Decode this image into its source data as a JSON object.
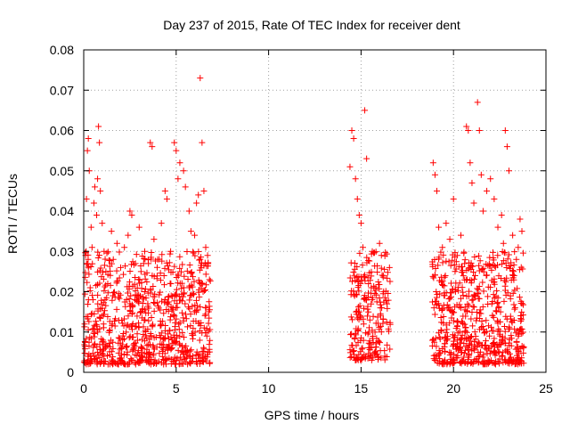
{
  "chart_data": {
    "type": "scatter",
    "title": "Day 237 of 2015, Rate Of TEC Index for receiver dent",
    "xlabel": "GPS time / hours",
    "ylabel": "ROTI / TECUs",
    "xlim": [
      0,
      25
    ],
    "ylim": [
      0,
      0.08
    ],
    "x_ticks": [
      0,
      5,
      10,
      15,
      20,
      25
    ],
    "y_ticks": [
      0,
      0.01,
      0.02,
      0.03,
      0.04,
      0.05,
      0.06,
      0.07,
      0.08
    ],
    "x_tick_labels": [
      "0",
      "5",
      "10",
      "15",
      "20",
      "25"
    ],
    "y_tick_labels": [
      "0",
      "0.01",
      "0.02",
      "0.03",
      "0.04",
      "0.05",
      "0.06",
      "0.07",
      "0.08"
    ],
    "grid": true,
    "legend": "none",
    "marker": "+",
    "color": "#ff0000",
    "series": [
      {
        "points": [
          [
            0.05,
            0.012
          ],
          [
            0.1,
            0.029
          ],
          [
            0.15,
            0.043
          ],
          [
            0.2,
            0.055
          ],
          [
            0.25,
            0.058
          ],
          [
            0.3,
            0.05
          ],
          [
            0.35,
            0.021
          ],
          [
            0.4,
            0.036
          ],
          [
            0.45,
            0.031
          ],
          [
            0.5,
            0.018
          ],
          [
            0.55,
            0.042
          ],
          [
            0.6,
            0.046
          ],
          [
            0.7,
            0.039
          ],
          [
            0.75,
            0.048
          ],
          [
            0.8,
            0.061
          ],
          [
            0.85,
            0.057
          ],
          [
            0.9,
            0.045
          ],
          [
            1.0,
            0.037
          ],
          [
            1.1,
            0.03
          ],
          [
            1.2,
            0.025
          ],
          [
            1.3,
            0.022
          ],
          [
            1.5,
            0.035
          ],
          [
            1.6,
            0.028
          ],
          [
            1.8,
            0.032
          ],
          [
            2.0,
            0.026
          ],
          [
            2.2,
            0.031
          ],
          [
            2.4,
            0.034
          ],
          [
            2.5,
            0.04
          ],
          [
            2.6,
            0.039
          ],
          [
            2.8,
            0.027
          ],
          [
            3.0,
            0.036
          ],
          [
            3.1,
            0.025
          ],
          [
            3.3,
            0.03
          ],
          [
            3.5,
            0.027
          ],
          [
            3.6,
            0.057
          ],
          [
            3.7,
            0.056
          ],
          [
            3.8,
            0.033
          ],
          [
            4.0,
            0.028
          ],
          [
            4.2,
            0.037
          ],
          [
            4.4,
            0.045
          ],
          [
            4.5,
            0.043
          ],
          [
            4.7,
            0.03
          ],
          [
            4.9,
            0.057
          ],
          [
            5.0,
            0.055
          ],
          [
            5.1,
            0.048
          ],
          [
            5.2,
            0.052
          ],
          [
            5.4,
            0.05
          ],
          [
            5.5,
            0.046
          ],
          [
            5.7,
            0.04
          ],
          [
            5.8,
            0.035
          ],
          [
            6.0,
            0.034
          ],
          [
            6.1,
            0.042
          ],
          [
            6.2,
            0.044
          ],
          [
            6.3,
            0.073
          ],
          [
            6.4,
            0.057
          ],
          [
            6.5,
            0.045
          ],
          [
            6.6,
            0.031
          ],
          [
            6.7,
            0.029
          ],
          [
            6.8,
            0.023
          ],
          [
            14.4,
            0.051
          ],
          [
            14.5,
            0.06
          ],
          [
            14.6,
            0.058
          ],
          [
            14.7,
            0.048
          ],
          [
            14.8,
            0.043
          ],
          [
            14.9,
            0.039
          ],
          [
            15.0,
            0.037
          ],
          [
            15.1,
            0.031
          ],
          [
            15.2,
            0.065
          ],
          [
            15.3,
            0.053
          ],
          [
            15.4,
            0.022
          ],
          [
            15.6,
            0.018
          ],
          [
            15.8,
            0.021
          ],
          [
            16.0,
            0.032
          ],
          [
            16.1,
            0.029
          ],
          [
            16.2,
            0.024
          ],
          [
            16.4,
            0.017
          ],
          [
            18.9,
            0.052
          ],
          [
            19.0,
            0.049
          ],
          [
            19.1,
            0.045
          ],
          [
            19.2,
            0.036
          ],
          [
            19.4,
            0.031
          ],
          [
            19.6,
            0.037
          ],
          [
            19.8,
            0.033
          ],
          [
            20.0,
            0.043
          ],
          [
            20.2,
            0.029
          ],
          [
            20.4,
            0.034
          ],
          [
            20.6,
            0.027
          ],
          [
            20.7,
            0.061
          ],
          [
            20.8,
            0.06
          ],
          [
            20.9,
            0.052
          ],
          [
            21.0,
            0.047
          ],
          [
            21.1,
            0.042
          ],
          [
            21.3,
            0.067
          ],
          [
            21.4,
            0.06
          ],
          [
            21.5,
            0.049
          ],
          [
            21.6,
            0.04
          ],
          [
            21.8,
            0.045
          ],
          [
            22.0,
            0.048
          ],
          [
            22.2,
            0.043
          ],
          [
            22.4,
            0.036
          ],
          [
            22.6,
            0.039
          ],
          [
            22.7,
            0.032
          ],
          [
            22.8,
            0.06
          ],
          [
            22.9,
            0.056
          ],
          [
            23.0,
            0.05
          ],
          [
            23.2,
            0.034
          ],
          [
            23.4,
            0.028
          ],
          [
            23.5,
            0.031
          ],
          [
            23.6,
            0.038
          ],
          [
            23.7,
            0.035
          ]
        ],
        "clusters": [
          {
            "x_range": [
              0.0,
              6.85
            ],
            "y_range": [
              0.002,
              0.03
            ],
            "count": 780
          },
          {
            "x_range": [
              14.4,
              16.6
            ],
            "y_range": [
              0.003,
              0.03
            ],
            "count": 230
          },
          {
            "x_range": [
              18.85,
              23.8
            ],
            "y_range": [
              0.002,
              0.03
            ],
            "count": 620
          }
        ]
      }
    ]
  }
}
